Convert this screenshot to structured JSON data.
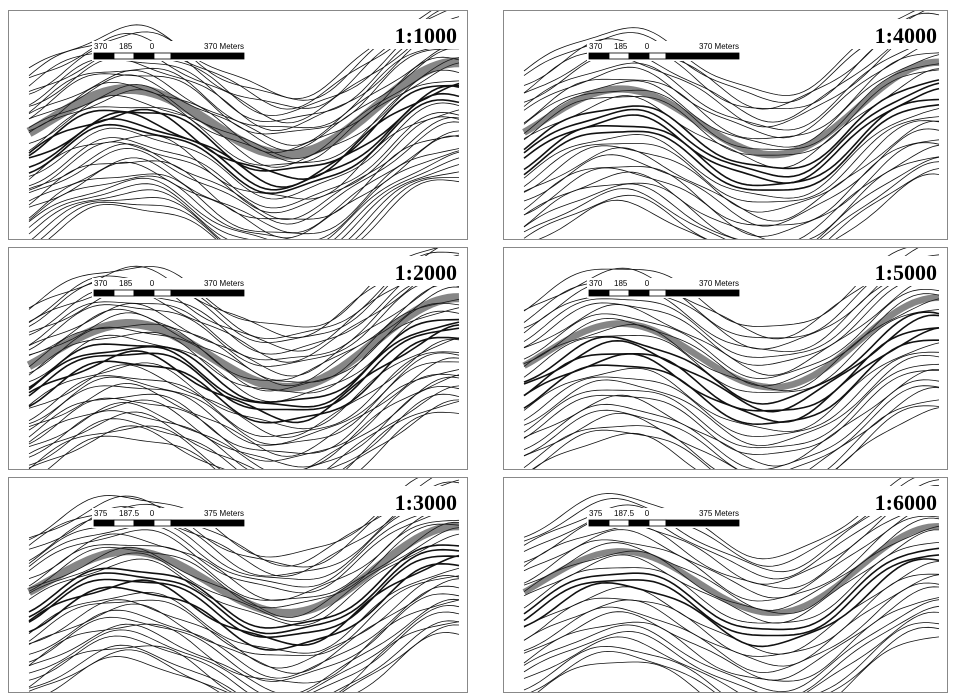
{
  "panels": [
    {
      "scale": "1:1000",
      "scalebar": [
        "370",
        "185",
        "0",
        "370 Meters"
      ]
    },
    {
      "scale": "1:4000",
      "scalebar": [
        "370",
        "185",
        "0",
        "370 Meters"
      ]
    },
    {
      "scale": "1:2000",
      "scalebar": [
        "370",
        "185",
        "0",
        "370 Meters"
      ]
    },
    {
      "scale": "1:5000",
      "scalebar": [
        "370",
        "185",
        "0",
        "370 Meters"
      ]
    },
    {
      "scale": "1:3000",
      "scalebar": [
        "375",
        "187.5",
        "0",
        "375 Meters"
      ]
    },
    {
      "scale": "1:6000",
      "scalebar": [
        "375",
        "187.5",
        "0",
        "375 Meters"
      ]
    }
  ]
}
